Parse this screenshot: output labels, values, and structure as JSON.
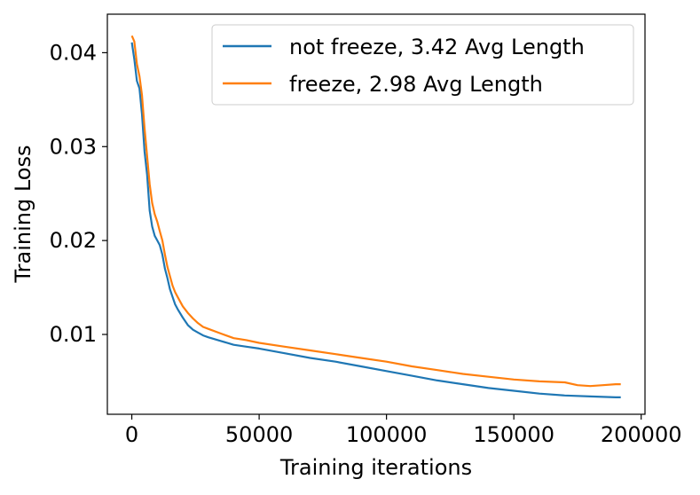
{
  "chart_data": {
    "type": "line",
    "title": "",
    "xlabel": "Training iterations",
    "ylabel": "Training Loss",
    "xlim": [
      -9600,
      201500
    ],
    "ylim": [
      0.0015,
      0.0441
    ],
    "xticks": [
      0,
      50000,
      100000,
      150000,
      200000
    ],
    "xtick_labels": [
      "0",
      "50000",
      "100000",
      "150000",
      "200000"
    ],
    "yticks": [
      0.01,
      0.02,
      0.03,
      0.04
    ],
    "ytick_labels": [
      "0.01",
      "0.02",
      "0.03",
      "0.04"
    ],
    "grid": false,
    "legend_position": "top-right",
    "series": [
      {
        "name": "not freeze, 3.42 Avg Length",
        "color": "#1f77b4",
        "x": [
          0,
          1000,
          2000,
          3000,
          4000,
          5000,
          6000,
          7000,
          8000,
          9000,
          10000,
          11000,
          12000,
          13000,
          14000,
          15000,
          16000,
          17000,
          18000,
          20000,
          22000,
          24000,
          26000,
          28000,
          30000,
          35000,
          40000,
          45000,
          50000,
          60000,
          70000,
          80000,
          90000,
          100000,
          110000,
          120000,
          130000,
          140000,
          150000,
          160000,
          170000,
          180000,
          190000,
          192000
        ],
        "y": [
          0.0411,
          0.0393,
          0.037,
          0.0362,
          0.0335,
          0.0295,
          0.027,
          0.0232,
          0.0215,
          0.0205,
          0.02,
          0.0195,
          0.0185,
          0.017,
          0.016,
          0.0148,
          0.014,
          0.0132,
          0.0127,
          0.0118,
          0.011,
          0.0105,
          0.0102,
          0.0099,
          0.0097,
          0.0093,
          0.0089,
          0.0087,
          0.0085,
          0.008,
          0.0075,
          0.0071,
          0.0066,
          0.0061,
          0.0056,
          0.0051,
          0.0047,
          0.0043,
          0.004,
          0.0037,
          0.0035,
          0.0034,
          0.0033,
          0.0033
        ]
      },
      {
        "name": "freeze, 2.98 Avg Length",
        "color": "#ff7f0e",
        "x": [
          0,
          1000,
          2000,
          3000,
          4000,
          5000,
          6000,
          7000,
          8000,
          9000,
          10000,
          11000,
          12000,
          13000,
          14000,
          15000,
          16000,
          17000,
          18000,
          20000,
          22000,
          24000,
          26000,
          28000,
          30000,
          35000,
          40000,
          45000,
          50000,
          60000,
          70000,
          80000,
          90000,
          100000,
          110000,
          120000,
          130000,
          140000,
          150000,
          160000,
          170000,
          175000,
          180000,
          185000,
          190000,
          192000
        ],
        "y": [
          0.0418,
          0.0412,
          0.0388,
          0.0375,
          0.0355,
          0.032,
          0.029,
          0.026,
          0.024,
          0.0228,
          0.022,
          0.021,
          0.02,
          0.0185,
          0.0172,
          0.0162,
          0.0152,
          0.0145,
          0.014,
          0.013,
          0.0123,
          0.0117,
          0.0112,
          0.0108,
          0.0106,
          0.0101,
          0.0096,
          0.0094,
          0.0091,
          0.0087,
          0.0083,
          0.0079,
          0.0075,
          0.0071,
          0.0066,
          0.0062,
          0.0058,
          0.0055,
          0.0052,
          0.005,
          0.0049,
          0.0046,
          0.0045,
          0.0046,
          0.0047,
          0.0047
        ]
      }
    ]
  }
}
